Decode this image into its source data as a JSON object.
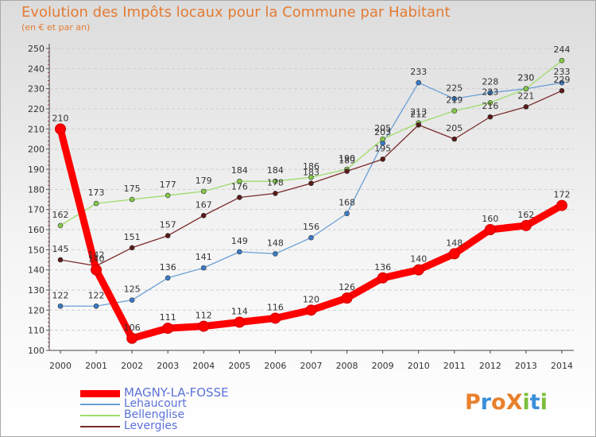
{
  "title": "Evolution des Impôts locaux pour la Commune par Habitant",
  "subtitle": "(en € et par an)",
  "logo": {
    "text": "ProXiti",
    "letters": [
      {
        "ch": "P",
        "color": "#e8802c"
      },
      {
        "ch": "r",
        "color": "#3a8fd8"
      },
      {
        "ch": "o",
        "color": "#e8802c"
      },
      {
        "ch": "X",
        "color": "#e8802c"
      },
      {
        "ch": "i",
        "color": "#7bbf3a"
      },
      {
        "ch": "t",
        "color": "#3a8fd8"
      },
      {
        "ch": "i",
        "color": "#7bbf3a"
      }
    ]
  },
  "chart_data": {
    "type": "line",
    "title": "Evolution des Impôts locaux pour la Commune par Habitant",
    "ylabel": "(en € et par an)",
    "xlabel": "",
    "x": [
      "2000",
      "2001",
      "2002",
      "2003",
      "2004",
      "2005",
      "2006",
      "2007",
      "2008",
      "2009",
      "2010",
      "2011",
      "2012",
      "2013",
      "2014"
    ],
    "ylim": [
      100,
      250
    ],
    "yticks": [
      100,
      110,
      120,
      130,
      140,
      150,
      160,
      170,
      180,
      190,
      200,
      210,
      220,
      230,
      240,
      250
    ],
    "grid": "horizontal",
    "series": [
      {
        "name": "MAGNY-LA-FOSSE",
        "color": "#ff0000",
        "marker": "#ff0000",
        "main": true,
        "values": [
          210,
          140,
          106,
          111,
          112,
          114,
          116,
          120,
          126,
          136,
          140,
          148,
          160,
          162,
          172
        ],
        "labels": [
          "210",
          "140",
          "106",
          "111",
          "112",
          "114",
          "116",
          "120",
          "126",
          "136",
          "140",
          "148",
          "160",
          "162",
          "172"
        ]
      },
      {
        "name": "Lehaucourt",
        "color": "#6a9fd6",
        "marker": "#3a7cc8",
        "values": [
          122,
          122,
          125,
          136,
          141,
          149,
          148,
          156,
          168,
          203,
          233,
          225,
          228,
          230,
          233
        ],
        "labels": [
          "122",
          "122",
          "125",
          "136",
          "141",
          "149",
          "148",
          "156",
          "168",
          "203",
          "233",
          "225",
          "228",
          "230",
          "233"
        ]
      },
      {
        "name": "Bellenglise",
        "color": "#9edb6a",
        "marker": "#86c94a",
        "values": [
          162,
          173,
          175,
          177,
          179,
          184,
          184,
          186,
          190,
          205,
          213,
          219,
          223,
          230,
          244
        ],
        "labels": [
          "162",
          "173",
          "175",
          "177",
          "179",
          "184",
          "184",
          "186",
          "190",
          "205",
          "213",
          "219",
          "223",
          "230",
          "244"
        ]
      },
      {
        "name": "Levergies",
        "color": "#7a2a2a",
        "marker": "#5a1a1a",
        "values": [
          145,
          142,
          151,
          157,
          167,
          176,
          178,
          183,
          189,
          195,
          212,
          205,
          216,
          221,
          229
        ],
        "labels": [
          "145",
          "142",
          "151",
          "157",
          "167",
          "176",
          "178",
          "183",
          "189",
          "195",
          "212",
          "205",
          "216",
          "221",
          "229"
        ]
      }
    ]
  }
}
